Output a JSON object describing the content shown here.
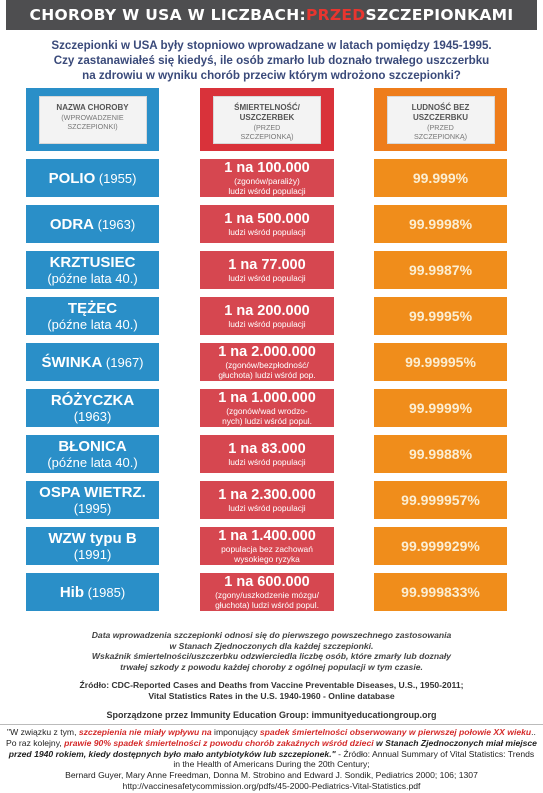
{
  "banner": {
    "part1": "CHOROBY W USA W LICZBACH: ",
    "part2": "PRZED",
    "part3": " SZCZEPIONKAMI"
  },
  "intro": [
    "Szczepionki w USA były stopniowo wprowadzane w latach pomiędzy 1945-1995.",
    "Czy zastanawiałeś się kiedyś, ile osób zmarło lub doznało trwałego uszczerbku",
    "na zdrowiu w wyniku chorób przeciw którym wdrożono szczepionki?"
  ],
  "headers": [
    {
      "title": [
        "NAZWA CHOROBY"
      ],
      "sub": [
        "(WPROWADZENIE",
        "SZCZEPIONKI)"
      ]
    },
    {
      "title": [
        "ŚMIERTELNOŚĆ/",
        "USZCZERBEK"
      ],
      "sub": [
        "(PRZED",
        "SZCZEPIONKĄ)"
      ]
    },
    {
      "title": [
        "LUDNOŚĆ BEZ",
        "USZCZERBKU"
      ],
      "sub": [
        "(PRZED",
        "SZCZEPIONKĄ)"
      ]
    }
  ],
  "rows": [
    {
      "name": "POLIO",
      "year": " (1955)",
      "line2": "",
      "ratio": "1 na 100.000",
      "note": [
        "(zgonów/paraliży)",
        "ludzi wśród populacji"
      ],
      "pct": "99.999%"
    },
    {
      "name": "ODRA",
      "year": " (1963)",
      "line2": "",
      "ratio": "1 na 500.000",
      "note": [
        "ludzi wśród populacji"
      ],
      "pct": "99.9998%"
    },
    {
      "name": "KRZTUSIEC",
      "year": "",
      "line2": "(późne lata 40.)",
      "ratio": "1 na 77.000",
      "note": [
        "ludzi wśród populacji"
      ],
      "pct": "99.9987%"
    },
    {
      "name": "TĘŻEC",
      "year": "",
      "line2": "(późne lata 40.)",
      "ratio": "1 na 200.000",
      "note": [
        "ludzi wśród populacji"
      ],
      "pct": "99.9995%"
    },
    {
      "name": "ŚWINKA",
      "year": " (1967)",
      "line2": "",
      "ratio": "1 na 2.000.000",
      "note": [
        "(zgonów/bezpłodność/",
        "głuchota) ludzi wśród pop."
      ],
      "pct": "99.99995%"
    },
    {
      "name": "RÓŻYCZKA",
      "year": "",
      "line2": "(1963)",
      "ratio": "1 na 1.000.000",
      "note": [
        "(zgonów/wad wrodzo-",
        "nych) ludzi wśród popul."
      ],
      "pct": "99.9999%"
    },
    {
      "name": "BŁONICA",
      "year": "",
      "line2": "(późne lata 40.)",
      "ratio": "1 na 83.000",
      "note": [
        "ludzi wśród populacji"
      ],
      "pct": "99.9988%"
    },
    {
      "name": "OSPA WIETRZ.",
      "year": "",
      "line2": "(1995)",
      "ratio": "1 na 2.300.000",
      "note": [
        "ludzi wśród populacji"
      ],
      "pct": "99.999957%"
    },
    {
      "name": "WZW typu B",
      "year": "",
      "line2": "(1991)",
      "ratio": "1 na 1.400.000",
      "note": [
        "populacja bez zachowań",
        "wysokiego ryzyka"
      ],
      "pct": "99.999929%"
    },
    {
      "name": "Hib",
      "year": " (1985)",
      "line2": "",
      "ratio": "1 na 600.000",
      "note": [
        "(zgony/uszkodzenie mózgu/",
        "głuchota) ludzi wśród popul."
      ],
      "pct": "99.999833%"
    }
  ],
  "notes": [
    "Data wprowadzenia szczepionki odnosi się do pierwszego powszechnego zastosowania",
    "w Stanach  Zjednoczonych dla każdej szczepionki.",
    "Wskaźnik śmiertelności/uszczerbku odzwierciedla liczbę osób, które zmarły lub doznały",
    "trwałej szkody z powodu każdej choroby z ogólnej populacji w tym czasie."
  ],
  "source": [
    "Źródło: CDC-Reported Cases and Deaths from Vaccine Preventable Diseases, U.S., 1950-2011;",
    "Vital Statistics Rates in the U.S. 1940-1960 - Online database"
  ],
  "prepared": "Sporządzone przez Immunity Education Group: immunityeducationgroup.org",
  "quote": {
    "a": "\"W związku z tym, ",
    "b": "szczepienia nie miały wpływu na",
    "c": " imponujący ",
    "d": "spadek śmiertelności obserwowany w pierwszej połowie XX wieku",
    "e": ".. Po raz kolejny, ",
    "f": "prawie 90% spadek śmiertelności z powodu chorób zakaźnych wśród dzieci",
    "g": " w Stanach Zjednoczonych miał miejsce przed 1940 rokiem, kiedy dostępnych było mało antybiotyków lub szczepionek.\"",
    "h": " - Źródło: Annual Summary of Vital Statistics: Trends in the Health of Americans During the 20th Century;",
    "i": "Bernard Guyer, Mary Anne Freedman, Donna M. Strobino and Edward J. Sondik, Pediatrics 2000; 106; 1307",
    "j": "http://vaccinesafetycommission.org/pdfs/45-2000-Pediatrics-Vital-Statistics.pdf"
  },
  "colors": {
    "blue": "#2a8fc8",
    "red": "#d9323a",
    "orange": "#ee7d1b",
    "banner": "#4e4e50"
  }
}
